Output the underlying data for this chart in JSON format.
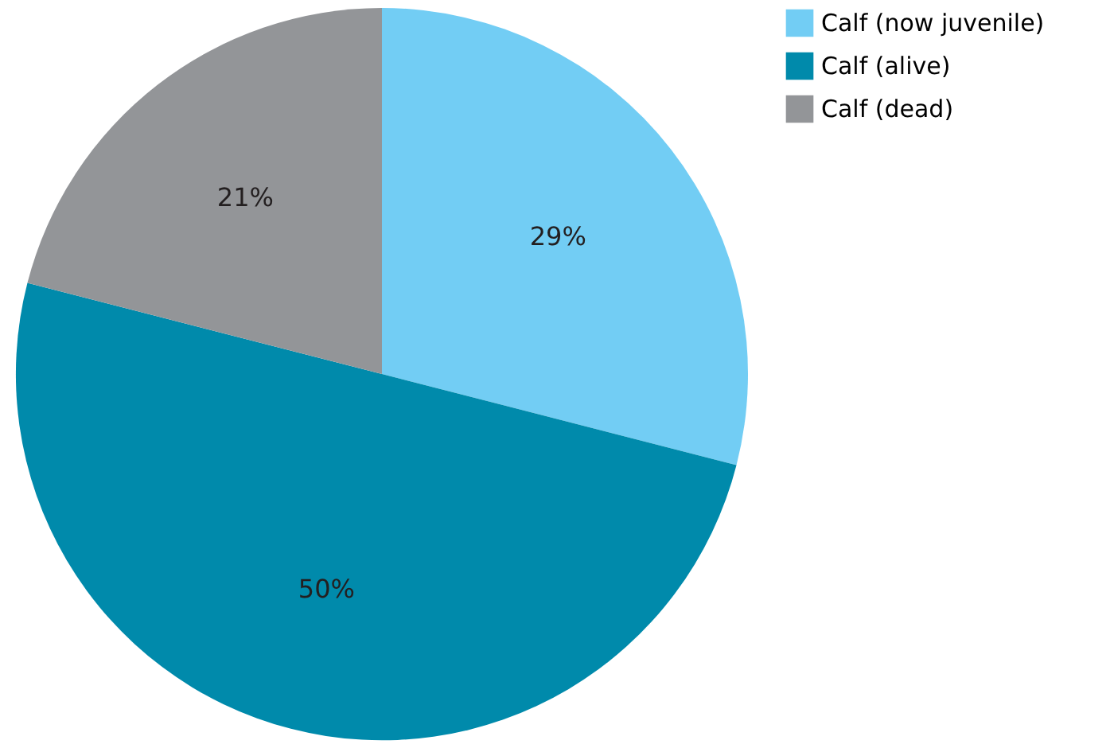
{
  "chart_data": {
    "type": "pie",
    "categories": [
      "Calf (now juvenile)",
      "Calf (alive)",
      "Calf (dead)"
    ],
    "values": [
      29,
      50,
      21
    ],
    "colors": [
      "#72cdf4",
      "#008aab",
      "#939598"
    ],
    "value_labels": [
      "29%",
      "50%",
      "21%"
    ],
    "legend": "top right"
  }
}
